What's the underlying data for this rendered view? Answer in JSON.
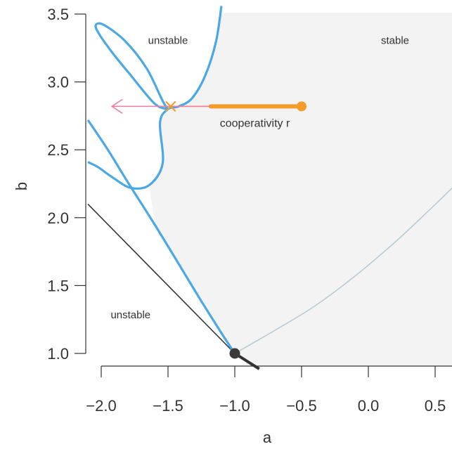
{
  "chart_data": {
    "type": "line",
    "xlabel": "a",
    "ylabel": "b",
    "xlim": [
      -2.1,
      0.65
    ],
    "ylim": [
      1.0,
      3.5
    ],
    "x_ticks": [
      -2.0,
      -1.5,
      -1.0,
      -0.5,
      0.0,
      0.5
    ],
    "x_tick_labels": [
      "−2.0",
      "−1.5",
      "−1.0",
      "−0.5",
      "0.0",
      "0.5"
    ],
    "y_ticks": [
      1.0,
      1.5,
      2.0,
      2.5,
      3.0,
      3.5
    ],
    "y_tick_labels": [
      "1.0",
      "1.5",
      "2.0",
      "2.5",
      "3.0",
      "3.5"
    ],
    "grid": false,
    "region_labels": [
      {
        "text": "unstable",
        "a": -1.5,
        "b": 3.28
      },
      {
        "text": "stable",
        "a": 0.2,
        "b": 3.28
      },
      {
        "text": "unstable",
        "a": -1.78,
        "b": 1.26
      }
    ],
    "stable_region_shading": "#f3f3f3",
    "colors": {
      "blue_curve": "#4aa8e8",
      "orange_path": "#f59b2a",
      "pink_arrow": "#f07aa3",
      "boundary_line": "#333333",
      "grey_curve": "#b9ccd6",
      "point": "#3a3a3a"
    },
    "boundary_line": {
      "points": [
        [
          -2.1,
          2.1
        ],
        [
          -1.0,
          1.0
        ],
        [
          -0.88,
          0.88
        ]
      ]
    },
    "grey_curve": {
      "points": [
        [
          -1.0,
          1.0
        ],
        [
          -0.7,
          1.17
        ],
        [
          -0.4,
          1.35
        ],
        [
          -0.1,
          1.57
        ],
        [
          0.2,
          1.82
        ],
        [
          0.45,
          2.05
        ],
        [
          0.65,
          2.24
        ]
      ]
    },
    "blue_curve_lower": {
      "points": [
        [
          -2.1,
          2.72
        ],
        [
          -1.95,
          2.5
        ],
        [
          -1.8,
          2.26
        ],
        [
          -1.6,
          1.95
        ],
        [
          -1.42,
          1.66
        ],
        [
          -1.26,
          1.4
        ],
        [
          -1.1,
          1.15
        ],
        [
          -1.0,
          1.0
        ]
      ]
    },
    "blue_curve_loop": {
      "points": [
        [
          -1.1,
          3.56
        ],
        [
          -1.14,
          3.3
        ],
        [
          -1.22,
          3.05
        ],
        [
          -1.32,
          2.88
        ],
        [
          -1.42,
          2.82
        ],
        [
          -1.5,
          2.8
        ],
        [
          -1.56,
          2.7
        ],
        [
          -1.54,
          2.4
        ],
        [
          -1.64,
          2.24
        ],
        [
          -1.78,
          2.22
        ],
        [
          -1.92,
          2.3
        ],
        [
          -2.02,
          2.37
        ],
        [
          -2.1,
          2.41
        ]
      ]
    },
    "blue_curve_upper_loop": {
      "points": [
        [
          -1.5,
          2.8
        ],
        [
          -1.6,
          2.84
        ],
        [
          -1.78,
          3.05
        ],
        [
          -1.92,
          3.22
        ],
        [
          -2.02,
          3.36
        ],
        [
          -2.04,
          3.42
        ],
        [
          -1.98,
          3.42
        ],
        [
          -1.82,
          3.3
        ],
        [
          -1.66,
          3.1
        ],
        [
          -1.54,
          2.86
        ],
        [
          -1.5,
          2.8
        ]
      ]
    },
    "cooperativity_path": {
      "label": "cooperativity r",
      "b": 2.82,
      "start_a": -0.5,
      "thick_end_a": -1.18,
      "thin_end_a": -1.6,
      "cross_a": -1.48,
      "arrow_from_a": -1.6,
      "arrow_to_a": -1.92
    },
    "point": {
      "a": -1.0,
      "b": 1.0
    }
  }
}
